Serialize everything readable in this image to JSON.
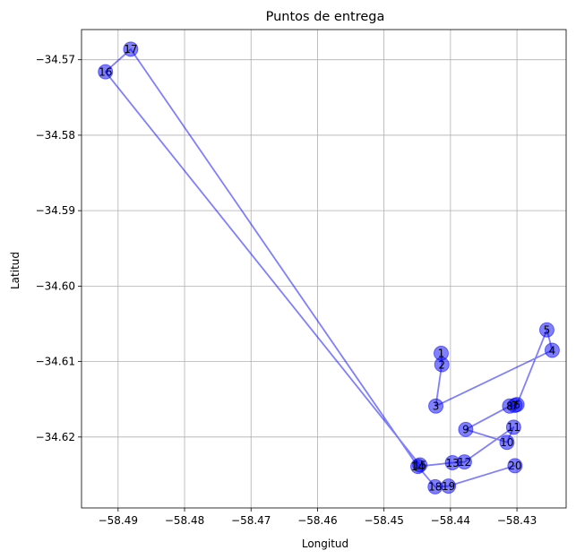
{
  "chart_data": {
    "type": "scatter",
    "title": "Puntos de entrega",
    "xlabel": "Longitud",
    "ylabel": "Latitud",
    "xlim": [
      -58.4955,
      -58.4226
    ],
    "ylim": [
      -34.6294,
      -34.566
    ],
    "xticks": [
      -58.49,
      -58.48,
      -58.47,
      -58.46,
      -58.45,
      -58.44,
      -58.43
    ],
    "xtick_labels": [
      "−58.49",
      "−58.48",
      "−58.47",
      "−58.46",
      "−58.45",
      "−58.44",
      "−58.43"
    ],
    "yticks": [
      -34.57,
      -34.58,
      -34.59,
      -34.6,
      -34.61,
      -34.62
    ],
    "ytick_labels": [
      "−34.57",
      "−34.58",
      "−34.59",
      "−34.60",
      "−34.61",
      "−34.62"
    ],
    "grid": true,
    "marker_color": "#0000ff",
    "line_color": "#0000ff",
    "points": [
      {
        "label": "1",
        "x": -58.4414,
        "y": -34.6089
      },
      {
        "label": "2",
        "x": -58.4413,
        "y": -34.6104
      },
      {
        "label": "3",
        "x": -58.4422,
        "y": -34.6159
      },
      {
        "label": "4",
        "x": -58.4247,
        "y": -34.6085
      },
      {
        "label": "5",
        "x": -58.4255,
        "y": -34.6058
      },
      {
        "label": "6",
        "x": -58.43,
        "y": -34.6157
      },
      {
        "label": "7",
        "x": -58.4303,
        "y": -34.6158
      },
      {
        "label": "8",
        "x": -58.4311,
        "y": -34.6159
      },
      {
        "label": "9",
        "x": -58.4377,
        "y": -34.619
      },
      {
        "label": "10",
        "x": -58.4315,
        "y": -34.6207
      },
      {
        "label": "11",
        "x": -58.4305,
        "y": -34.6187
      },
      {
        "label": "12",
        "x": -58.4379,
        "y": -34.6233
      },
      {
        "label": "13",
        "x": -58.4397,
        "y": -34.6234
      },
      {
        "label": "14",
        "x": -58.4449,
        "y": -34.6239
      },
      {
        "label": "15",
        "x": -58.4446,
        "y": -34.6237
      },
      {
        "label": "16",
        "x": -58.4919,
        "y": -34.5716
      },
      {
        "label": "17",
        "x": -58.4881,
        "y": -34.5686
      },
      {
        "label": "18",
        "x": -58.4423,
        "y": -34.6266
      },
      {
        "label": "19",
        "x": -58.4403,
        "y": -34.6265
      },
      {
        "label": "20",
        "x": -58.4303,
        "y": -34.6238
      }
    ],
    "route": [
      "1",
      "2",
      "3",
      "4",
      "5",
      "6",
      "7",
      "8",
      "9",
      "10",
      "11",
      "12",
      "13",
      "14",
      "15",
      "16",
      "17",
      "14",
      "18",
      "19",
      "20"
    ]
  }
}
